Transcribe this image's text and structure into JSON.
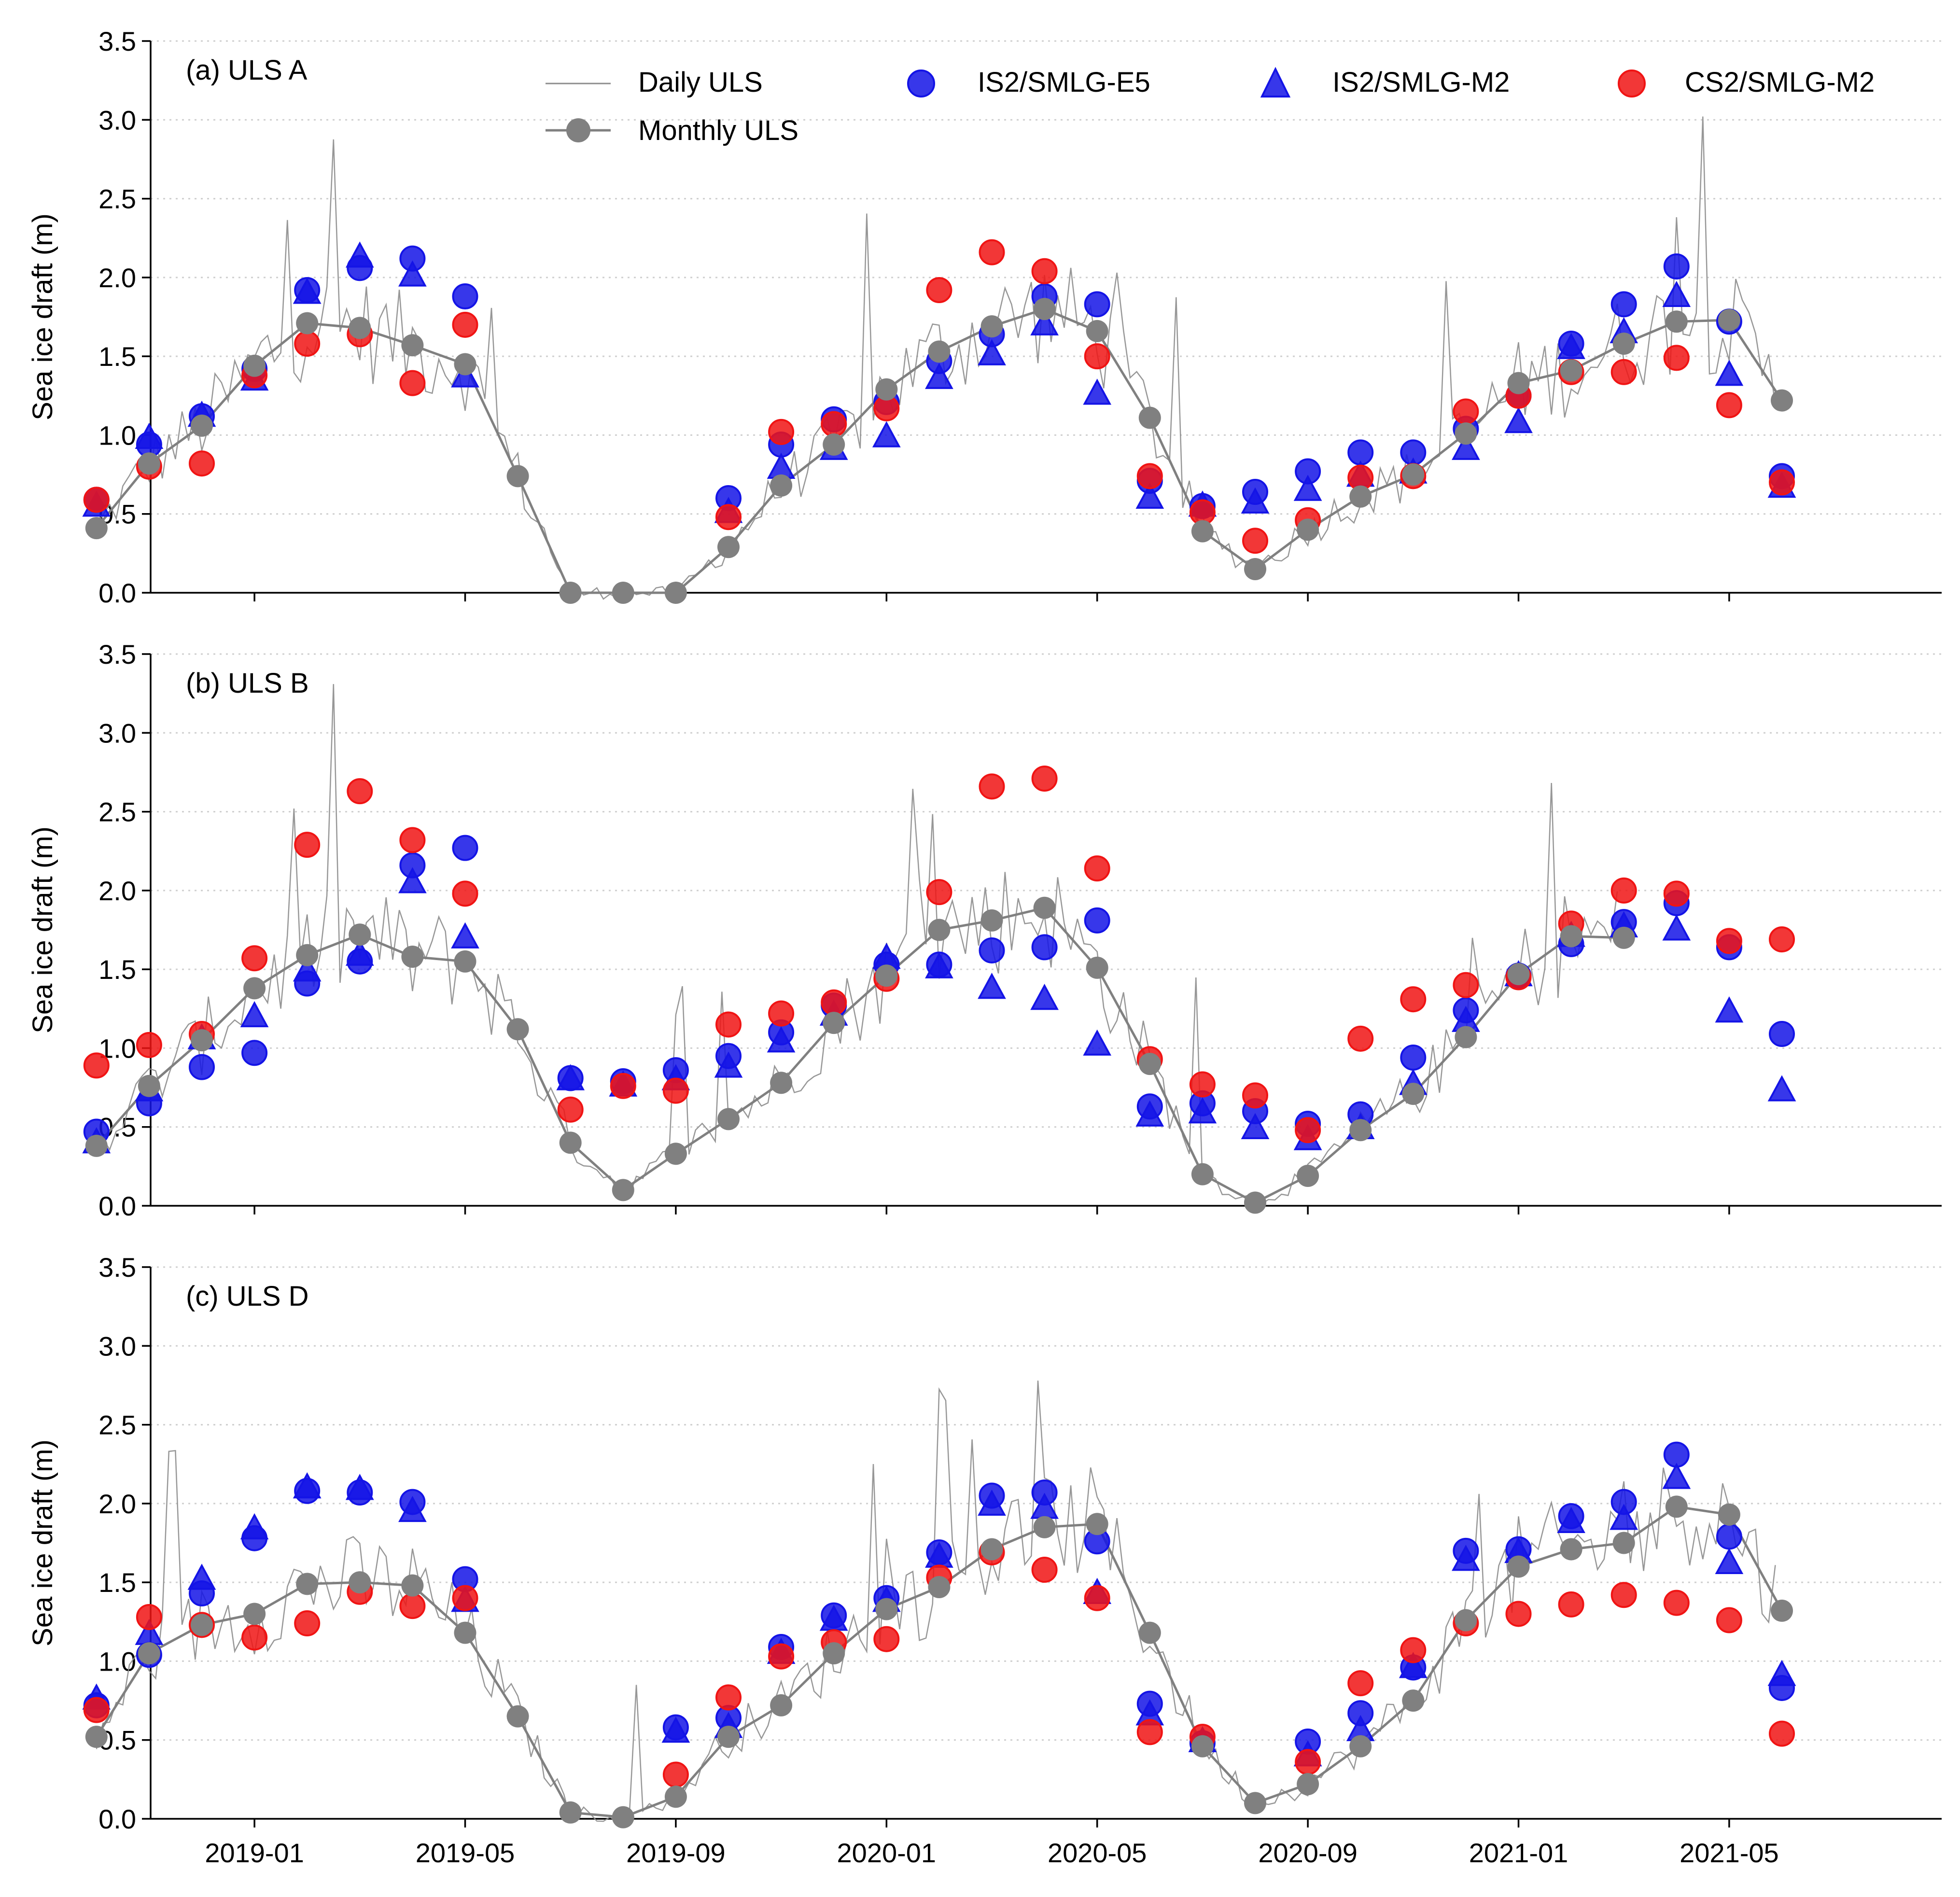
{
  "figure": {
    "ylabel": "Sea ice draft (m)",
    "xtick_labels": [
      "2019-01",
      "2019-05",
      "2019-09",
      "2020-01",
      "2020-05",
      "2020-09",
      "2021-01",
      "2021-05"
    ],
    "ytick_labels": [
      "0.0",
      "0.5",
      "1.0",
      "1.5",
      "2.0",
      "2.5",
      "3.0",
      "3.5"
    ]
  },
  "legend": {
    "daily": "Daily ULS",
    "monthly": "Monthly ULS",
    "e5": "IS2/SMLG-E5",
    "is2m2": "IS2/SMLG-M2",
    "cs2m2": "CS2/SMLG-M2"
  },
  "colors": {
    "daily": "#8c8c8c",
    "monthly": "#808080",
    "e5": "#1414e6",
    "is2m2": "#1414e6",
    "cs2m2": "#f01414"
  },
  "chart_data": [
    {
      "type": "line",
      "title": "(a) ULS A",
      "ylabel": "Sea ice draft (m)",
      "ylim": [
        0,
        3.5
      ],
      "x_month_index": [
        -2,
        -1,
        0,
        1,
        2,
        3,
        4,
        5,
        6,
        7,
        8,
        9,
        10,
        11,
        12,
        13,
        14,
        15,
        16,
        17,
        18,
        19,
        20,
        21,
        22,
        23,
        24,
        25,
        26,
        27,
        28,
        29,
        30,
        31,
        32
      ],
      "series": [
        {
          "name": "Monthly ULS",
          "values": [
            0.41,
            0.82,
            1.06,
            1.44,
            1.71,
            1.68,
            1.57,
            1.45,
            0.74,
            0.0,
            0.0,
            0.0,
            0.29,
            0.68,
            0.94,
            1.29,
            1.53,
            1.69,
            1.8,
            1.66,
            1.11,
            0.39,
            0.15,
            0.4,
            0.61,
            0.75,
            1.01,
            1.33,
            1.41,
            1.58,
            1.72,
            1.73,
            1.22,
            null,
            null
          ]
        },
        {
          "name": "IS2/SMLG-E5",
          "values": [
            0.59,
            0.94,
            1.12,
            1.42,
            1.92,
            2.06,
            2.12,
            1.88,
            null,
            null,
            null,
            null,
            0.6,
            0.94,
            1.1,
            1.21,
            1.47,
            1.64,
            1.88,
            1.83,
            0.71,
            0.55,
            0.64,
            0.77,
            0.89,
            0.89,
            1.04,
            1.25,
            1.58,
            1.83,
            2.07,
            1.72,
            0.74,
            null,
            null
          ]
        },
        {
          "name": "IS2/SMLG-M2",
          "values": [
            0.55,
            0.98,
            1.12,
            1.35,
            1.9,
            2.13,
            2.01,
            1.37,
            null,
            null,
            null,
            null,
            0.51,
            0.79,
            0.91,
            0.99,
            1.36,
            1.51,
            1.7,
            1.26,
            0.6,
            0.55,
            0.57,
            0.65,
            0.74,
            0.76,
            0.91,
            1.08,
            1.55,
            1.65,
            1.88,
            1.38,
            0.67,
            null,
            null
          ]
        },
        {
          "name": "CS2/SMLG-M2",
          "values": [
            0.59,
            0.8,
            0.82,
            1.38,
            1.58,
            1.64,
            1.33,
            1.7,
            null,
            null,
            null,
            null,
            0.48,
            1.02,
            1.07,
            1.17,
            1.92,
            2.16,
            2.04,
            1.5,
            0.74,
            0.51,
            0.33,
            0.46,
            0.73,
            0.74,
            1.15,
            1.25,
            1.4,
            1.4,
            1.49,
            1.19,
            0.7,
            null,
            null
          ]
        }
      ]
    },
    {
      "type": "line",
      "title": "(b) ULS B",
      "ylabel": "Sea ice draft (m)",
      "ylim": [
        0,
        3.5
      ],
      "x_month_index": [
        -2,
        -1,
        0,
        1,
        2,
        3,
        4,
        5,
        6,
        7,
        8,
        9,
        10,
        11,
        12,
        13,
        14,
        15,
        16,
        17,
        18,
        19,
        20,
        21,
        22,
        23,
        24,
        25,
        26,
        27,
        28,
        29,
        30,
        31,
        32
      ],
      "series": [
        {
          "name": "Monthly ULS",
          "values": [
            0.38,
            0.76,
            1.05,
            1.38,
            1.59,
            1.72,
            1.58,
            1.55,
            1.12,
            0.4,
            0.1,
            0.33,
            0.55,
            0.78,
            1.16,
            1.46,
            1.75,
            1.81,
            1.89,
            1.51,
            0.9,
            0.2,
            0.02,
            0.19,
            0.48,
            0.71,
            1.07,
            1.47,
            1.71,
            1.7,
            null,
            null,
            null,
            null,
            null
          ]
        },
        {
          "name": "IS2/SMLG-E5",
          "values": [
            0.47,
            0.65,
            0.88,
            0.97,
            1.41,
            1.55,
            2.16,
            2.27,
            null,
            0.81,
            0.79,
            0.86,
            0.95,
            1.1,
            1.27,
            1.53,
            1.53,
            1.62,
            1.64,
            1.81,
            0.63,
            0.65,
            0.6,
            0.52,
            0.58,
            0.94,
            1.24,
            1.46,
            1.66,
            1.8,
            1.92,
            1.64,
            1.09,
            null,
            null
          ]
        },
        {
          "name": "IS2/SMLG-M2",
          "values": [
            0.4,
            0.73,
            1.06,
            1.2,
            1.49,
            1.59,
            2.05,
            1.7,
            null,
            0.8,
            0.76,
            0.8,
            0.88,
            1.04,
            1.21,
            1.57,
            1.51,
            1.38,
            1.31,
            1.02,
            0.57,
            0.59,
            0.49,
            0.42,
            0.49,
            0.77,
            1.17,
            1.46,
            1.71,
            1.77,
            1.75,
            1.23,
            0.73,
            null,
            null
          ]
        },
        {
          "name": "CS2/SMLG-M2",
          "values": [
            0.89,
            1.02,
            1.09,
            1.57,
            2.29,
            2.63,
            2.32,
            1.98,
            null,
            0.61,
            0.76,
            0.73,
            1.15,
            1.22,
            1.29,
            1.44,
            1.99,
            2.66,
            2.71,
            2.14,
            0.93,
            0.77,
            0.7,
            0.48,
            1.06,
            1.31,
            1.4,
            1.45,
            1.79,
            2.0,
            1.98,
            1.68,
            1.69,
            null,
            null
          ]
        }
      ]
    },
    {
      "type": "line",
      "title": "(c) ULS D",
      "ylabel": "Sea ice draft (m)",
      "ylim": [
        0,
        3.5
      ],
      "x_month_index": [
        -2,
        -1,
        0,
        1,
        2,
        3,
        4,
        5,
        6,
        7,
        8,
        9,
        10,
        11,
        12,
        13,
        14,
        15,
        16,
        17,
        18,
        19,
        20,
        21,
        22,
        23,
        24,
        25,
        26,
        27,
        28,
        29,
        30,
        31,
        32
      ],
      "series": [
        {
          "name": "Monthly ULS",
          "values": [
            0.52,
            1.05,
            1.23,
            1.3,
            1.49,
            1.5,
            1.48,
            1.18,
            0.65,
            0.04,
            0.01,
            0.14,
            0.52,
            0.72,
            1.05,
            1.33,
            1.47,
            1.71,
            1.85,
            1.87,
            1.18,
            0.46,
            0.1,
            0.22,
            0.46,
            0.75,
            1.26,
            1.6,
            1.71,
            1.75,
            1.98,
            1.93,
            1.32,
            null,
            null
          ]
        },
        {
          "name": "IS2/SMLG-E5",
          "values": [
            0.72,
            1.04,
            1.43,
            1.78,
            2.08,
            2.07,
            2.01,
            1.52,
            null,
            null,
            null,
            0.58,
            0.64,
            1.09,
            1.29,
            1.4,
            1.69,
            2.05,
            2.07,
            1.76,
            0.73,
            0.48,
            null,
            0.49,
            0.67,
            0.96,
            1.7,
            1.71,
            1.92,
            2.01,
            2.31,
            1.79,
            0.83,
            null,
            null
          ]
        },
        {
          "name": "IS2/SMLG-M2",
          "values": [
            0.76,
            1.17,
            1.52,
            1.84,
            2.1,
            2.09,
            1.95,
            1.38,
            null,
            null,
            null,
            0.55,
            0.58,
            1.05,
            1.26,
            1.38,
            1.66,
            1.99,
            1.97,
            1.43,
            0.66,
            0.49,
            null,
            0.4,
            0.56,
            0.96,
            1.64,
            1.69,
            1.88,
            1.9,
            2.16,
            1.62,
            0.91,
            null,
            null
          ]
        },
        {
          "name": "CS2/SMLG-M2",
          "values": [
            0.69,
            1.28,
            1.23,
            1.15,
            1.24,
            1.44,
            1.35,
            1.4,
            null,
            null,
            null,
            0.28,
            0.77,
            1.03,
            1.12,
            1.14,
            1.53,
            1.69,
            1.58,
            1.4,
            0.55,
            0.52,
            null,
            0.36,
            0.86,
            1.07,
            1.24,
            1.3,
            1.36,
            1.42,
            1.37,
            1.26,
            0.54,
            null,
            null
          ]
        }
      ]
    }
  ]
}
